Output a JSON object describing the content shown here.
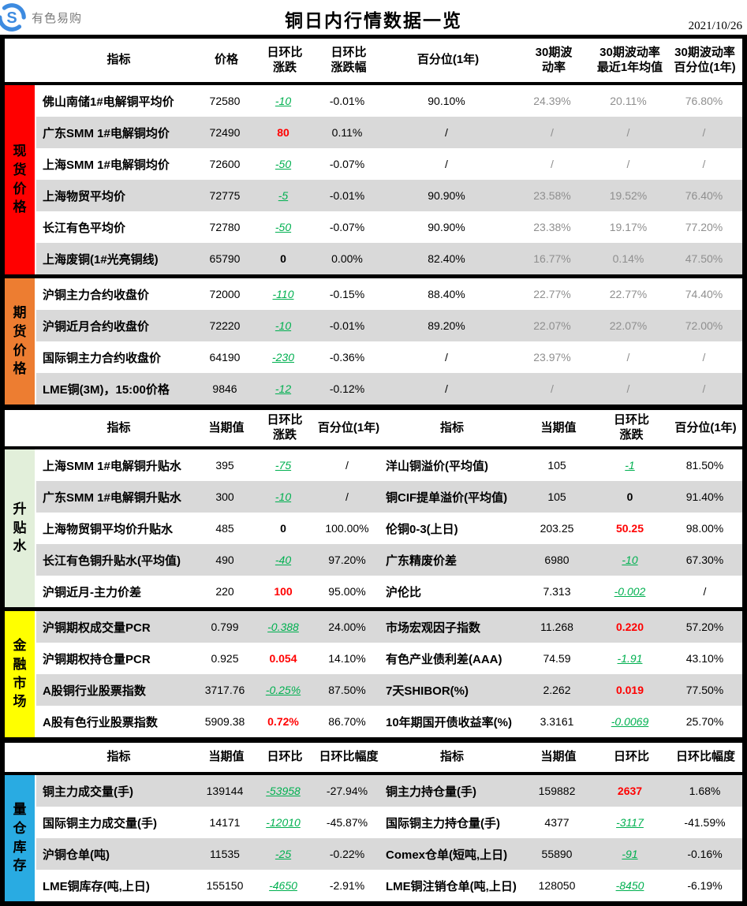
{
  "page_header": {
    "logo_text": "有色易购",
    "title": "铜日内行情数据一览",
    "date": "2021/10/26"
  },
  "colors": {
    "spot": "#ff0000",
    "futures": "#ed7d31",
    "premium": "#e2efda",
    "financial": "#ffff00",
    "inventory": "#29abe2",
    "row_alt": "#d9d9d9",
    "up": "#ff0000",
    "down": "#00b050",
    "logo_blue": "#3d8be0"
  },
  "tables": [
    {
      "columns": [
        "指标",
        "价格",
        "日环比\n涨跌",
        "日环比\n涨跌幅",
        "百分位(1年)",
        "30期波\n动率",
        "30期波动率\n最近1年均值",
        "30期波动率\n百分位(1年)"
      ],
      "sections": [
        {
          "id": "spot-price",
          "label": "现货价格",
          "color_key": "spot",
          "stripe_start": "light",
          "rows": [
            {
              "label": "佛山南储1#电解铜平均价",
              "cells": [
                {
                  "t": "72580"
                },
                {
                  "t": "-10",
                  "s": "down"
                },
                {
                  "t": "-0.01%"
                },
                {
                  "t": "90.10%"
                },
                {
                  "t": "24.39%",
                  "s": "muted"
                },
                {
                  "t": "20.11%",
                  "s": "muted"
                },
                {
                  "t": "76.80%",
                  "s": "muted"
                }
              ]
            },
            {
              "label": "广东SMM 1#电解铜均价",
              "cells": [
                {
                  "t": "72490"
                },
                {
                  "t": "80",
                  "s": "up"
                },
                {
                  "t": "0.11%"
                },
                {
                  "t": "/"
                },
                {
                  "t": "/",
                  "s": "muted"
                },
                {
                  "t": "/",
                  "s": "muted"
                },
                {
                  "t": "/",
                  "s": "muted"
                }
              ]
            },
            {
              "label": "上海SMM 1#电解铜均价",
              "cells": [
                {
                  "t": "72600"
                },
                {
                  "t": "-50",
                  "s": "down"
                },
                {
                  "t": "-0.07%"
                },
                {
                  "t": "/"
                },
                {
                  "t": "/",
                  "s": "muted"
                },
                {
                  "t": "/",
                  "s": "muted"
                },
                {
                  "t": "/",
                  "s": "muted"
                }
              ]
            },
            {
              "label": "上海物贸平均价",
              "cells": [
                {
                  "t": "72775"
                },
                {
                  "t": "-5",
                  "s": "down"
                },
                {
                  "t": "-0.01%"
                },
                {
                  "t": "90.90%"
                },
                {
                  "t": "23.58%",
                  "s": "muted"
                },
                {
                  "t": "19.52%",
                  "s": "muted"
                },
                {
                  "t": "76.40%",
                  "s": "muted"
                }
              ]
            },
            {
              "label": "长江有色平均价",
              "cells": [
                {
                  "t": "72780"
                },
                {
                  "t": "-50",
                  "s": "down"
                },
                {
                  "t": "-0.07%"
                },
                {
                  "t": "90.90%"
                },
                {
                  "t": "23.38%",
                  "s": "muted"
                },
                {
                  "t": "19.17%",
                  "s": "muted"
                },
                {
                  "t": "77.20%",
                  "s": "muted"
                }
              ]
            },
            {
              "label": "上海废铜(1#光亮铜线)",
              "cells": [
                {
                  "t": "65790"
                },
                {
                  "t": "0",
                  "s": "zero"
                },
                {
                  "t": "0.00%"
                },
                {
                  "t": "82.40%"
                },
                {
                  "t": "16.77%",
                  "s": "muted"
                },
                {
                  "t": "0.14%",
                  "s": "muted"
                },
                {
                  "t": "47.50%",
                  "s": "muted"
                }
              ]
            }
          ]
        },
        {
          "id": "futures-price",
          "label": "期货价格",
          "color_key": "futures",
          "stripe_start": "light",
          "rows": [
            {
              "label": "沪铜主力合约收盘价",
              "cells": [
                {
                  "t": "72000"
                },
                {
                  "t": "-110",
                  "s": "down"
                },
                {
                  "t": "-0.15%"
                },
                {
                  "t": "88.40%"
                },
                {
                  "t": "22.77%",
                  "s": "muted"
                },
                {
                  "t": "22.77%",
                  "s": "muted"
                },
                {
                  "t": "74.40%",
                  "s": "muted"
                }
              ]
            },
            {
              "label": "沪铜近月合约收盘价",
              "cells": [
                {
                  "t": "72220"
                },
                {
                  "t": "-10",
                  "s": "down"
                },
                {
                  "t": "-0.01%"
                },
                {
                  "t": "89.20%"
                },
                {
                  "t": "22.07%",
                  "s": "muted"
                },
                {
                  "t": "22.07%",
                  "s": "muted"
                },
                {
                  "t": "72.00%",
                  "s": "muted"
                }
              ]
            },
            {
              "label": "国际铜主力合约收盘价",
              "cells": [
                {
                  "t": "64190"
                },
                {
                  "t": "-230",
                  "s": "down"
                },
                {
                  "t": "-0.36%"
                },
                {
                  "t": "/"
                },
                {
                  "t": "23.97%",
                  "s": "muted"
                },
                {
                  "t": "/",
                  "s": "muted"
                },
                {
                  "t": "/",
                  "s": "muted"
                }
              ]
            },
            {
              "label": "LME铜(3M)，15:00价格",
              "cells": [
                {
                  "t": "9846"
                },
                {
                  "t": "-12",
                  "s": "down"
                },
                {
                  "t": "-0.12%"
                },
                {
                  "t": "/"
                },
                {
                  "t": "/",
                  "s": "muted"
                },
                {
                  "t": "/",
                  "s": "muted"
                },
                {
                  "t": "/",
                  "s": "muted"
                }
              ]
            }
          ]
        }
      ]
    },
    {
      "columns": [
        "指标",
        "当期值",
        "日环比\n涨跌",
        "百分位(1年)",
        "指标",
        "当期值",
        "日环比\n涨跌",
        "百分位(1年)"
      ],
      "sections": [
        {
          "id": "premium-discount",
          "label": "升贴水",
          "color_key": "premium",
          "stripe_start": "light",
          "rows": [
            {
              "label": "上海SMM 1#电解铜升贴水",
              "cells": [
                {
                  "t": "395"
                },
                {
                  "t": "-75",
                  "s": "down"
                },
                {
                  "t": "/"
                },
                {
                  "t": "洋山铜溢价(平均值)",
                  "s": "rowlabel"
                },
                {
                  "t": "105"
                },
                {
                  "t": "-1",
                  "s": "down"
                },
                {
                  "t": "81.50%"
                }
              ]
            },
            {
              "label": "广东SMM 1#电解铜升贴水",
              "cells": [
                {
                  "t": "300"
                },
                {
                  "t": "-10",
                  "s": "down"
                },
                {
                  "t": "/"
                },
                {
                  "t": "铜CIF提单溢价(平均值)",
                  "s": "rowlabel"
                },
                {
                  "t": "105"
                },
                {
                  "t": "0",
                  "s": "zero"
                },
                {
                  "t": "91.40%"
                }
              ]
            },
            {
              "label": "上海物贸铜平均价升贴水",
              "cells": [
                {
                  "t": "485"
                },
                {
                  "t": "0",
                  "s": "zero"
                },
                {
                  "t": "100.00%"
                },
                {
                  "t": "伦铜0-3(上日)",
                  "s": "rowlabel"
                },
                {
                  "t": "203.25"
                },
                {
                  "t": "50.25",
                  "s": "up"
                },
                {
                  "t": "98.00%"
                }
              ]
            },
            {
              "label": "长江有色铜升贴水(平均值)",
              "cells": [
                {
                  "t": "490"
                },
                {
                  "t": "-40",
                  "s": "down"
                },
                {
                  "t": "97.20%"
                },
                {
                  "t": "广东精废价差",
                  "s": "rowlabel"
                },
                {
                  "t": "6980"
                },
                {
                  "t": "-10",
                  "s": "down"
                },
                {
                  "t": "67.30%"
                }
              ]
            },
            {
              "label": "沪铜近月-主力价差",
              "cells": [
                {
                  "t": "220"
                },
                {
                  "t": "100",
                  "s": "up"
                },
                {
                  "t": "95.00%"
                },
                {
                  "t": "沪伦比",
                  "s": "rowlabel"
                },
                {
                  "t": "7.313"
                },
                {
                  "t": "-0.002",
                  "s": "down"
                },
                {
                  "t": "/"
                }
              ]
            }
          ]
        },
        {
          "id": "financial-market",
          "label": "金融市场",
          "color_key": "financial",
          "stripe_start": "dark",
          "rows": [
            {
              "label": "沪铜期权成交量PCR",
              "cells": [
                {
                  "t": "0.799"
                },
                {
                  "t": "-0.388",
                  "s": "down"
                },
                {
                  "t": "24.00%"
                },
                {
                  "t": "市场宏观因子指数",
                  "s": "rowlabel"
                },
                {
                  "t": "11.268"
                },
                {
                  "t": "0.220",
                  "s": "up"
                },
                {
                  "t": "57.20%"
                }
              ]
            },
            {
              "label": "沪铜期权持仓量PCR",
              "cells": [
                {
                  "t": "0.925"
                },
                {
                  "t": "0.054",
                  "s": "up"
                },
                {
                  "t": "14.10%"
                },
                {
                  "t": "有色产业债利差(AAA)",
                  "s": "rowlabel"
                },
                {
                  "t": "74.59"
                },
                {
                  "t": "-1.91",
                  "s": "down"
                },
                {
                  "t": "43.10%"
                }
              ]
            },
            {
              "label": "A股铜行业股票指数",
              "cells": [
                {
                  "t": "3717.76"
                },
                {
                  "t": "-0.25%",
                  "s": "down"
                },
                {
                  "t": "87.50%"
                },
                {
                  "t": "7天SHIBOR(%)",
                  "s": "rowlabel"
                },
                {
                  "t": "2.262"
                },
                {
                  "t": "0.019",
                  "s": "up"
                },
                {
                  "t": "77.50%"
                }
              ]
            },
            {
              "label": "A股有色行业股票指数",
              "cells": [
                {
                  "t": "5909.38"
                },
                {
                  "t": "0.72%",
                  "s": "up"
                },
                {
                  "t": "86.70%"
                },
                {
                  "t": "10年期国开债收益率(%)",
                  "s": "rowlabel"
                },
                {
                  "t": "3.3161"
                },
                {
                  "t": "-0.0069",
                  "s": "down"
                },
                {
                  "t": "25.70%"
                }
              ]
            }
          ]
        }
      ]
    },
    {
      "columns": [
        "指标",
        "当期值",
        "日环比",
        "日环比幅度",
        "指标",
        "当期值",
        "日环比",
        "日环比幅度"
      ],
      "sections": [
        {
          "id": "volume-inventory",
          "label": "量仓库存",
          "color_key": "inventory",
          "stripe_start": "dark",
          "rows": [
            {
              "label": "铜主力成交量(手)",
              "cells": [
                {
                  "t": "139144"
                },
                {
                  "t": "-53958",
                  "s": "down"
                },
                {
                  "t": "-27.94%"
                },
                {
                  "t": "铜主力持仓量(手)",
                  "s": "rowlabel"
                },
                {
                  "t": "159882"
                },
                {
                  "t": "2637",
                  "s": "up"
                },
                {
                  "t": "1.68%"
                }
              ]
            },
            {
              "label": "国际铜主力成交量(手)",
              "cells": [
                {
                  "t": "14171"
                },
                {
                  "t": "-12010",
                  "s": "down"
                },
                {
                  "t": "-45.87%"
                },
                {
                  "t": "国际铜主力持仓量(手)",
                  "s": "rowlabel"
                },
                {
                  "t": "4377"
                },
                {
                  "t": "-3117",
                  "s": "down"
                },
                {
                  "t": "-41.59%"
                }
              ]
            },
            {
              "label": "沪铜仓单(吨)",
              "cells": [
                {
                  "t": "11535"
                },
                {
                  "t": "-25",
                  "s": "down"
                },
                {
                  "t": "-0.22%"
                },
                {
                  "t": "Comex仓单(短吨,上日)",
                  "s": "rowlabel"
                },
                {
                  "t": "55890"
                },
                {
                  "t": "-91",
                  "s": "down"
                },
                {
                  "t": "-0.16%"
                }
              ]
            },
            {
              "label": "LME铜库存(吨,上日)",
              "cells": [
                {
                  "t": "155150"
                },
                {
                  "t": "-4650",
                  "s": "down"
                },
                {
                  "t": "-2.91%"
                },
                {
                  "t": "LME铜注销仓单(吨,上日)",
                  "s": "rowlabel"
                },
                {
                  "t": "128050"
                },
                {
                  "t": "-8450",
                  "s": "down"
                },
                {
                  "t": "-6.19%"
                }
              ]
            }
          ]
        }
      ]
    }
  ]
}
